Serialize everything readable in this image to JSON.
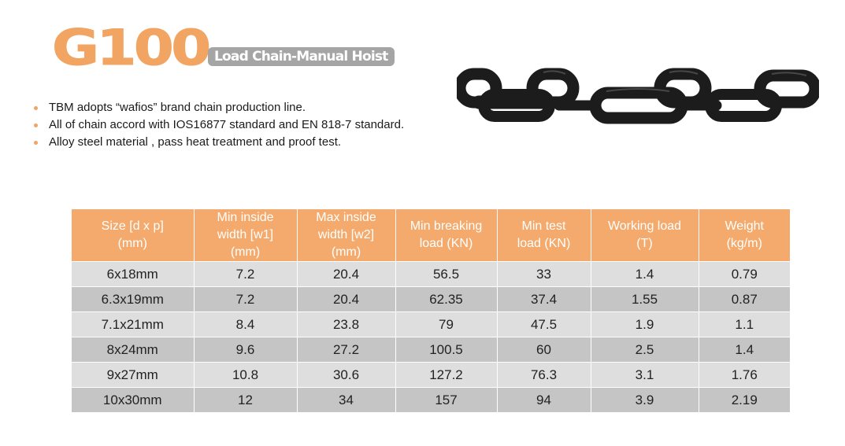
{
  "header": {
    "logo_text": "G100",
    "subtitle": "Load Chain-Manual Hoist"
  },
  "bullets": [
    "TBM adopts “wafios” brand chain production line.",
    "All of chain accord with IOS16877 standard and EN 818-7 standard.",
    "Alloy steel material , pass heat treatment and proof test."
  ],
  "colors": {
    "accent": "#f4aa6c",
    "logo": "#f2a462",
    "subtitle_bg": "#a5a5a5",
    "row_light": "#dedede",
    "row_dark": "#c5c5c5",
    "chain": "#1c1c1c"
  },
  "chain_image": {
    "icon": "chain-links-icon"
  },
  "table": {
    "headers": [
      [
        "Size [d x p]",
        "(mm)"
      ],
      [
        "Min inside",
        "width [w1]",
        "(mm)"
      ],
      [
        "Max inside",
        "width [w2]",
        "(mm)"
      ],
      [
        "Min breaking",
        "load (KN)"
      ],
      [
        "Min test",
        "load (KN)"
      ],
      [
        "Working load",
        "(T)"
      ],
      [
        "Weight",
        "(kg/m)"
      ]
    ],
    "rows": [
      [
        "6x18mm",
        "7.2",
        "20.4",
        "56.5",
        "33",
        "1.4",
        "0.79"
      ],
      [
        "6.3x19mm",
        "7.2",
        "20.4",
        "62.35",
        "37.4",
        "1.55",
        "0.87"
      ],
      [
        "7.1x21mm",
        "8.4",
        "23.8",
        "79",
        "47.5",
        "1.9",
        "1.1"
      ],
      [
        "8x24mm",
        "9.6",
        "27.2",
        "100.5",
        "60",
        "2.5",
        "1.4"
      ],
      [
        "9x27mm",
        "10.8",
        "30.6",
        "127.2",
        "76.3",
        "3.1",
        "1.76"
      ],
      [
        "10x30mm",
        "12",
        "34",
        "157",
        "94",
        "3.9",
        "2.19"
      ]
    ]
  }
}
